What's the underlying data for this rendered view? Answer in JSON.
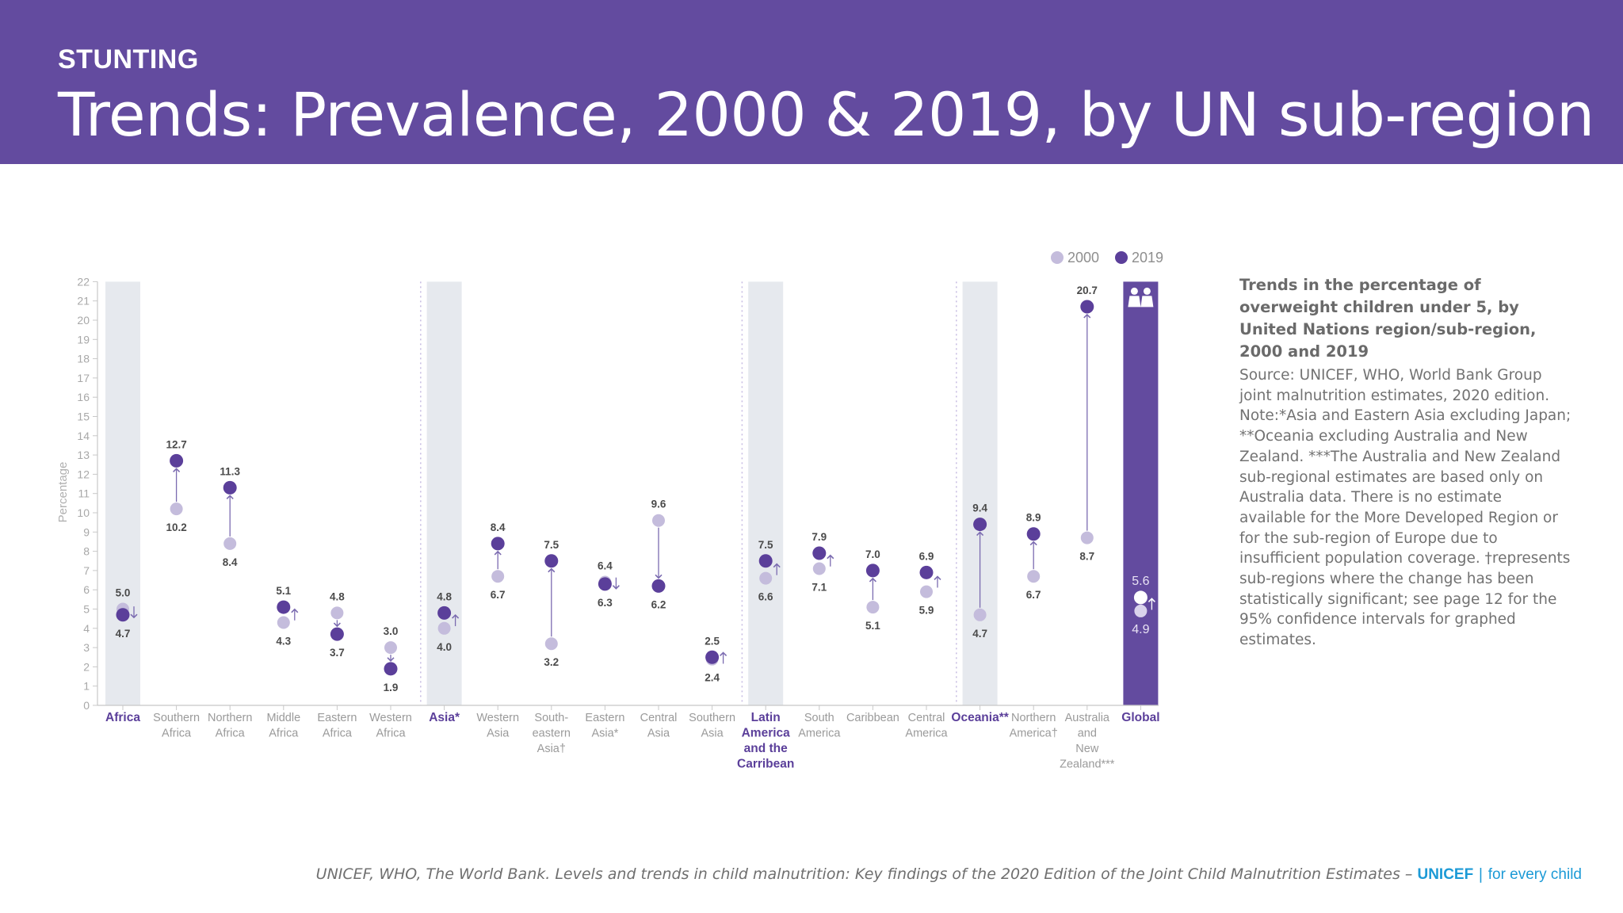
{
  "header": {
    "kicker": "STUNTING",
    "title": "Trends: Prevalence, 2000 & 2019, by UN sub-region"
  },
  "sidebar": {
    "heading": "Trends in the percentage of overweight children under 5, by United Nations region/sub-region, 2000 and 2019",
    "body": "Source: UNICEF, WHO, World Bank Group joint malnutrition estimates, 2020 edition. Note:*Asia and Eastern Asia excluding Japan; **Oceania excluding Australia and New Zealand. ***The Australia and New Zealand sub-regional estimates are based only on Australia data. There is no estimate available for the More Developed Region or for the sub-region of Europe due to insufficient population coverage. †represents sub-regions where the change has been statistically significant; see page 12 for the 95% confidence intervals for graphed estimates."
  },
  "footer": {
    "citation": "UNICEF, WHO, The World Bank. Levels and trends in child malnutrition: Key findings of the 2020 Edition of the Joint Child Malnutrition Estimates –",
    "brand": "UNICEF",
    "separator": "|",
    "tagline": "for every child"
  },
  "colors": {
    "header_bg": "#634b9f",
    "color_2000": "#c4bcdc",
    "color_2019": "#5b3f9a",
    "region_band": "#e6e9ee",
    "global_band": "#634b9f"
  },
  "icons": {
    "global": "children-icon"
  },
  "chart_data": {
    "type": "dumbbell",
    "ylabel": "Percentage",
    "ylim": [
      0,
      22
    ],
    "yticks": [
      0,
      1,
      2,
      3,
      4,
      5,
      6,
      7,
      8,
      9,
      10,
      11,
      12,
      13,
      14,
      15,
      16,
      17,
      18,
      19,
      20,
      21,
      22
    ],
    "legend": [
      "2000",
      "2019"
    ],
    "legend_position": "top-right",
    "categories": [
      {
        "label": [
          "Africa"
        ],
        "type": "region",
        "v2000": 5.0,
        "v2019": 4.7,
        "l2000": "5.0",
        "l2019": "4.7",
        "arrow": "down"
      },
      {
        "label": [
          "Southern",
          "Africa"
        ],
        "type": "sub",
        "v2000": 10.2,
        "v2019": 12.7,
        "l2000": "10.2",
        "l2019": "12.7",
        "arrow": "long"
      },
      {
        "label": [
          "Northern",
          "Africa"
        ],
        "type": "sub",
        "v2000": 8.4,
        "v2019": 11.3,
        "l2000": "8.4",
        "l2019": "11.3",
        "arrow": "long"
      },
      {
        "label": [
          "Middle",
          "Africa"
        ],
        "type": "sub",
        "v2000": 4.3,
        "v2019": 5.1,
        "l2000": "4.3",
        "l2019": "5.1",
        "arrow": "up"
      },
      {
        "label": [
          "Eastern",
          "Africa"
        ],
        "type": "sub",
        "v2000": 4.8,
        "v2019": 3.7,
        "l2000": "4.8",
        "l2019": "3.7",
        "arrow": "long"
      },
      {
        "label": [
          "Western",
          "Africa"
        ],
        "type": "sub",
        "v2000": 3.0,
        "v2019": 1.9,
        "l2000": "3.0",
        "l2019": "1.9",
        "arrow": "long"
      },
      {
        "label": [
          "Asia*"
        ],
        "type": "region",
        "v2000": 4.0,
        "v2019": 4.8,
        "l2000": "4.0",
        "l2019": "4.8",
        "arrow": "up"
      },
      {
        "label": [
          "Western",
          "Asia"
        ],
        "type": "sub",
        "v2000": 6.7,
        "v2019": 8.4,
        "l2000": "6.7",
        "l2019": "8.4",
        "arrow": "long"
      },
      {
        "label": [
          "South-",
          "eastern",
          "Asia†"
        ],
        "type": "sub",
        "v2000": 3.2,
        "v2019": 7.5,
        "l2000": "3.2",
        "l2019": "7.5",
        "arrow": "long"
      },
      {
        "label": [
          "Eastern",
          "Asia*"
        ],
        "type": "sub",
        "v2000": 6.4,
        "v2019": 6.3,
        "l2000": "6.4",
        "l2019": "6.3",
        "arrow": "down"
      },
      {
        "label": [
          "Central",
          "Asia"
        ],
        "type": "sub",
        "v2000": 9.6,
        "v2019": 6.2,
        "l2000": "9.6",
        "l2019": "6.2",
        "arrow": "long"
      },
      {
        "label": [
          "Southern",
          "Asia"
        ],
        "type": "sub",
        "v2000": 2.4,
        "v2019": 2.5,
        "l2000": "2.4",
        "l2019": "2.5",
        "arrow": "up"
      },
      {
        "label": [
          "Latin",
          "America",
          "and the",
          "Carribean"
        ],
        "type": "region",
        "v2000": 6.6,
        "v2019": 7.5,
        "l2000": "6.6",
        "l2019": "7.5",
        "arrow": "up"
      },
      {
        "label": [
          "South",
          "America"
        ],
        "type": "sub",
        "v2000": 7.1,
        "v2019": 7.9,
        "l2000": "7.1",
        "l2019": "7.9",
        "arrow": "up"
      },
      {
        "label": [
          "Caribbean"
        ],
        "type": "sub",
        "v2000": 5.1,
        "v2019": 7.0,
        "l2000": "5.1",
        "l2019": "7.0",
        "arrow": "long"
      },
      {
        "label": [
          "Central",
          "America"
        ],
        "type": "sub",
        "v2000": 5.9,
        "v2019": 6.9,
        "l2000": "5.9",
        "l2019": "6.9",
        "arrow": "up"
      },
      {
        "label": [
          "Oceania**"
        ],
        "type": "region",
        "v2000": 4.7,
        "v2019": 9.4,
        "l2000": "4.7",
        "l2019": "9.4",
        "arrow": "long"
      },
      {
        "label": [
          "Northern",
          "America†"
        ],
        "type": "sub",
        "v2000": 6.7,
        "v2019": 8.9,
        "l2000": "6.7",
        "l2019": "8.9",
        "arrow": "long"
      },
      {
        "label": [
          "Australia",
          "and",
          "New",
          "Zealand***"
        ],
        "type": "sub",
        "v2000": 8.7,
        "v2019": 20.7,
        "l2000": "8.7",
        "l2019": "20.7",
        "arrow": "long"
      },
      {
        "label": [
          "Global"
        ],
        "type": "global",
        "v2000": 4.9,
        "v2019": 5.6,
        "l2000": "4.9",
        "l2019": "5.6",
        "arrow": "up"
      }
    ]
  }
}
